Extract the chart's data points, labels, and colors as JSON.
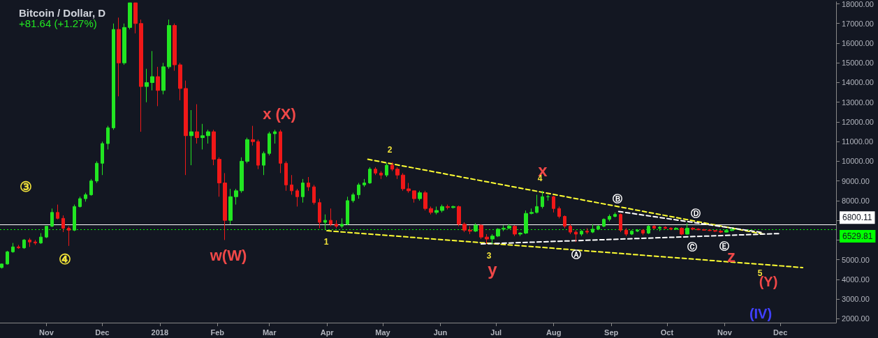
{
  "chart_data": {
    "type": "candlestick",
    "title": "Bitcoin / Dollar, D",
    "subtitle": "+81.64 (+1.27%)",
    "x": [
      "2017-10-08",
      "2017-10-11",
      "2017-10-14",
      "2017-10-17",
      "2017-10-20",
      "2017-10-23",
      "2017-10-26",
      "2017-10-29",
      "2017-11-01",
      "2017-11-04",
      "2017-11-07",
      "2017-11-10",
      "2017-11-13",
      "2017-11-16",
      "2017-11-19",
      "2017-11-22",
      "2017-11-25",
      "2017-11-28",
      "2017-12-01",
      "2017-12-04",
      "2017-12-07",
      "2017-12-10",
      "2017-12-13",
      "2017-12-16",
      "2017-12-19",
      "2017-12-22",
      "2017-12-25",
      "2017-12-28",
      "2017-12-31",
      "2018-01-03",
      "2018-01-06",
      "2018-01-09",
      "2018-01-12",
      "2018-01-15",
      "2018-01-18",
      "2018-01-21",
      "2018-01-24",
      "2018-01-27",
      "2018-01-30",
      "2018-02-02",
      "2018-02-05",
      "2018-02-08",
      "2018-02-11",
      "2018-02-14",
      "2018-02-17",
      "2018-02-20",
      "2018-02-23",
      "2018-02-26",
      "2018-03-01",
      "2018-03-04",
      "2018-03-07",
      "2018-03-10",
      "2018-03-13",
      "2018-03-16",
      "2018-03-19",
      "2018-03-22",
      "2018-03-25",
      "2018-03-28",
      "2018-03-31",
      "2018-04-03",
      "2018-04-06",
      "2018-04-09",
      "2018-04-12",
      "2018-04-15",
      "2018-04-18",
      "2018-04-21",
      "2018-04-24",
      "2018-04-27",
      "2018-04-30",
      "2018-05-03",
      "2018-05-06",
      "2018-05-09",
      "2018-05-12",
      "2018-05-15",
      "2018-05-18",
      "2018-05-21",
      "2018-05-24",
      "2018-05-27",
      "2018-05-30",
      "2018-06-02",
      "2018-06-05",
      "2018-06-08",
      "2018-06-11",
      "2018-06-14",
      "2018-06-17",
      "2018-06-20",
      "2018-06-23",
      "2018-06-26",
      "2018-06-29",
      "2018-07-02",
      "2018-07-05",
      "2018-07-08",
      "2018-07-11",
      "2018-07-14",
      "2018-07-17",
      "2018-07-20",
      "2018-07-23",
      "2018-07-26",
      "2018-07-29",
      "2018-08-01",
      "2018-08-04",
      "2018-08-07",
      "2018-08-10",
      "2018-08-13",
      "2018-08-16",
      "2018-08-19",
      "2018-08-22",
      "2018-08-25",
      "2018-08-28",
      "2018-08-31",
      "2018-09-03",
      "2018-09-06",
      "2018-09-09",
      "2018-09-12",
      "2018-09-15",
      "2018-09-18",
      "2018-09-21",
      "2018-09-24",
      "2018-09-27",
      "2018-09-30",
      "2018-10-03",
      "2018-10-06",
      "2018-10-09",
      "2018-10-12",
      "2018-10-15",
      "2018-10-18",
      "2018-10-21",
      "2018-10-24",
      "2018-10-27",
      "2018-10-30",
      "2018-11-02",
      "2018-11-05"
    ],
    "ohlc": [
      [
        4600,
        4800,
        4550,
        4780
      ],
      [
        4780,
        5450,
        4750,
        5400
      ],
      [
        5400,
        5850,
        5350,
        5650
      ],
      [
        5650,
        5750,
        5550,
        5600
      ],
      [
        5600,
        6050,
        5550,
        6000
      ],
      [
        6000,
        6100,
        5650,
        5900
      ],
      [
        5900,
        6000,
        5750,
        5850
      ],
      [
        5850,
        6350,
        5800,
        6150
      ],
      [
        6150,
        6700,
        6100,
        6700
      ],
      [
        6700,
        7600,
        6650,
        7400
      ],
      [
        7400,
        7800,
        7050,
        7100
      ],
      [
        7100,
        7250,
        6400,
        6600
      ],
      [
        6600,
        6700,
        5700,
        6500
      ],
      [
        6500,
        7800,
        6450,
        7700
      ],
      [
        7700,
        8200,
        7650,
        8100
      ],
      [
        8100,
        8400,
        7950,
        8300
      ],
      [
        8300,
        9100,
        8250,
        9000
      ],
      [
        9000,
        10000,
        8900,
        9900
      ],
      [
        9900,
        11000,
        9300,
        10900
      ],
      [
        10900,
        11800,
        10600,
        11700
      ],
      [
        11700,
        17000,
        11600,
        16700
      ],
      [
        16700,
        17300,
        13300,
        15000
      ],
      [
        15000,
        17000,
        14900,
        16800
      ],
      [
        16800,
        18050,
        16700,
        18050
      ],
      [
        18050,
        18050,
        16500,
        17000
      ],
      [
        17000,
        17200,
        11500,
        13800
      ],
      [
        13800,
        14700,
        13000,
        14000
      ],
      [
        14000,
        15600,
        13600,
        14300
      ],
      [
        14300,
        14800,
        12800,
        13600
      ],
      [
        13600,
        15000,
        13400,
        14800
      ],
      [
        14800,
        17200,
        14700,
        16900
      ],
      [
        16900,
        17000,
        14600,
        14900
      ],
      [
        14900,
        15000,
        13100,
        13700
      ],
      [
        13700,
        14100,
        9300,
        11300
      ],
      [
        11300,
        12600,
        9800,
        11500
      ],
      [
        11500,
        12900,
        10900,
        11200
      ],
      [
        11200,
        11900,
        10600,
        11300
      ],
      [
        11300,
        11600,
        10900,
        11500
      ],
      [
        11500,
        11600,
        9800,
        10100
      ],
      [
        10100,
        10200,
        8200,
        8900
      ],
      [
        8900,
        9400,
        6000,
        7000
      ],
      [
        7000,
        8600,
        6800,
        8200
      ],
      [
        8200,
        8600,
        7800,
        8500
      ],
      [
        8500,
        10200,
        8400,
        10000
      ],
      [
        10000,
        11200,
        9900,
        11100
      ],
      [
        11100,
        11800,
        10800,
        11000
      ],
      [
        11000,
        11100,
        9600,
        9800
      ],
      [
        9800,
        10500,
        9300,
        10400
      ],
      [
        10400,
        11500,
        10300,
        11400
      ],
      [
        11400,
        11600,
        10900,
        11500
      ],
      [
        11500,
        11600,
        9400,
        9900
      ],
      [
        9900,
        10000,
        8500,
        8800
      ],
      [
        8800,
        9300,
        8300,
        8500
      ],
      [
        8500,
        8600,
        7700,
        8200
      ],
      [
        8200,
        9100,
        7900,
        8900
      ],
      [
        8900,
        9200,
        8500,
        8700
      ],
      [
        8700,
        8800,
        7800,
        7900
      ],
      [
        7900,
        8100,
        6600,
        6900
      ],
      [
        6900,
        7300,
        6500,
        7000
      ],
      [
        7000,
        7600,
        6700,
        6800
      ],
      [
        6800,
        7000,
        6600,
        6700
      ],
      [
        6700,
        7100,
        6600,
        6800
      ],
      [
        6800,
        8200,
        6750,
        8000
      ],
      [
        8000,
        8400,
        7900,
        8300
      ],
      [
        8300,
        8900,
        8100,
        8800
      ],
      [
        8800,
        9100,
        8700,
        8900
      ],
      [
        8900,
        9700,
        8850,
        9600
      ],
      [
        9600,
        9700,
        9300,
        9400
      ],
      [
        9400,
        9500,
        9100,
        9300
      ],
      [
        9300,
        9900,
        9200,
        9800
      ],
      [
        9800,
        9950,
        9500,
        9600
      ],
      [
        9600,
        9700,
        9100,
        9300
      ],
      [
        9300,
        9400,
        8500,
        8600
      ],
      [
        8600,
        8900,
        8400,
        8500
      ],
      [
        8500,
        8500,
        7900,
        8100
      ],
      [
        8100,
        8500,
        8000,
        8400
      ],
      [
        8400,
        8500,
        7500,
        7600
      ],
      [
        7600,
        7700,
        7300,
        7400
      ],
      [
        7400,
        7700,
        7300,
        7500
      ],
      [
        7500,
        7800,
        7400,
        7700
      ],
      [
        7700,
        7800,
        7550,
        7650
      ],
      [
        7650,
        7750,
        7600,
        7700
      ],
      [
        7700,
        7750,
        6700,
        6800
      ],
      [
        6800,
        6900,
        6400,
        6500
      ],
      [
        6500,
        6700,
        6300,
        6450
      ],
      [
        6450,
        6850,
        6400,
        6750
      ],
      [
        6750,
        6800,
        6050,
        6150
      ],
      [
        6150,
        6300,
        5800,
        6050
      ],
      [
        6050,
        6300,
        5800,
        6200
      ],
      [
        6200,
        6600,
        6150,
        6550
      ],
      [
        6550,
        6750,
        6450,
        6600
      ],
      [
        6600,
        6800,
        6550,
        6700
      ],
      [
        6700,
        6750,
        6200,
        6300
      ],
      [
        6300,
        6400,
        6200,
        6350
      ],
      [
        6350,
        7500,
        6300,
        7350
      ],
      [
        7350,
        7600,
        7300,
        7400
      ],
      [
        7400,
        8300,
        7350,
        7700
      ],
      [
        7700,
        8500,
        7600,
        8200
      ],
      [
        8200,
        8300,
        8000,
        8200
      ],
      [
        8200,
        8250,
        7400,
        7600
      ],
      [
        7600,
        7700,
        7100,
        7200
      ],
      [
        7200,
        7250,
        6600,
        6700
      ],
      [
        6700,
        6800,
        6300,
        6400
      ],
      [
        6400,
        6500,
        5900,
        6300
      ],
      [
        6300,
        6500,
        6200,
        6450
      ],
      [
        6450,
        6600,
        6300,
        6400
      ],
      [
        6400,
        6800,
        6350,
        6550
      ],
      [
        6550,
        6750,
        6500,
        6700
      ],
      [
        6700,
        7100,
        6650,
        7050
      ],
      [
        7050,
        7300,
        6950,
        7200
      ],
      [
        7200,
        7400,
        7150,
        7300
      ],
      [
        7300,
        7350,
        6400,
        6500
      ],
      [
        6500,
        6600,
        6200,
        6300
      ],
      [
        6300,
        6500,
        6250,
        6450
      ],
      [
        6450,
        6550,
        6400,
        6500
      ],
      [
        6500,
        6550,
        6250,
        6350
      ],
      [
        6350,
        6750,
        6300,
        6700
      ],
      [
        6700,
        6750,
        6550,
        6600
      ],
      [
        6600,
        6700,
        6450,
        6650
      ],
      [
        6650,
        6700,
        6550,
        6600
      ],
      [
        6600,
        6650,
        6500,
        6550
      ],
      [
        6550,
        6650,
        6530,
        6600
      ],
      [
        6600,
        6650,
        6250,
        6300
      ],
      [
        6300,
        6850,
        6280,
        6600
      ],
      [
        6600,
        6650,
        6500,
        6550
      ],
      [
        6550,
        6600,
        6500,
        6520
      ],
      [
        6520,
        6560,
        6480,
        6500
      ],
      [
        6500,
        6550,
        6450,
        6480
      ],
      [
        6480,
        6500,
        6400,
        6450
      ],
      [
        6450,
        6500,
        6350,
        6400
      ],
      [
        6400,
        6550,
        6380,
        6480
      ],
      [
        6480,
        6620,
        6450,
        6530
      ]
    ],
    "series": [
      {
        "type": "line",
        "color": "#ffff33",
        "line_style": "dashed",
        "x": [
          "2018-04-23",
          "2018-11-22"
        ],
        "values": [
          10100,
          6300
        ]
      },
      {
        "type": "line",
        "color": "#ffff33",
        "line_style": "dashed",
        "x": [
          "2018-04-01",
          "2018-12-13"
        ],
        "values": [
          6470,
          4600
        ]
      },
      {
        "type": "line",
        "color": "#ffffff",
        "line_style": "dashed",
        "x": [
          "2018-09-05",
          "2018-11-22"
        ],
        "values": [
          7450,
          6370
        ]
      },
      {
        "type": "line",
        "color": "#ffffff",
        "line_style": "dashed",
        "x": [
          "2018-06-23",
          "2018-12-01"
        ],
        "values": [
          5800,
          6330
        ]
      }
    ],
    "xlim": [
      "2017-10-07",
      "2018-12-31"
    ],
    "xticks": [
      {
        "value": "2017-11-01",
        "label": "Nov"
      },
      {
        "value": "2017-12-01",
        "label": "Dec"
      },
      {
        "value": "2018-01-01",
        "label": "2018"
      },
      {
        "value": "2018-02-01",
        "label": "Feb"
      },
      {
        "value": "2018-03-01",
        "label": "Mar"
      },
      {
        "value": "2018-04-01",
        "label": "Apr"
      },
      {
        "value": "2018-05-01",
        "label": "May"
      },
      {
        "value": "2018-06-01",
        "label": "Jun"
      },
      {
        "value": "2018-07-01",
        "label": "Jul"
      },
      {
        "value": "2018-08-01",
        "label": "Aug"
      },
      {
        "value": "2018-09-01",
        "label": "Sep"
      },
      {
        "value": "2018-10-01",
        "label": "Oct"
      },
      {
        "value": "2018-11-01",
        "label": "Nov"
      },
      {
        "value": "2018-12-01",
        "label": "Dec"
      }
    ],
    "ylim": [
      1800,
      18100
    ],
    "yticks": [
      {
        "value": 2000,
        "label": "2000.00"
      },
      {
        "value": 3000,
        "label": "3000.00"
      },
      {
        "value": 4000,
        "label": "4000.00"
      },
      {
        "value": 5000,
        "label": "5000.00"
      },
      {
        "value": 6000,
        "label": null
      },
      {
        "value": 7000,
        "label": null
      },
      {
        "value": 8000,
        "label": "8000.00"
      },
      {
        "value": 9000,
        "label": "9000.00"
      },
      {
        "value": 10000,
        "label": "10000.00"
      },
      {
        "value": 11000,
        "label": "11000.00"
      },
      {
        "value": 12000,
        "label": "12000.00"
      },
      {
        "value": 13000,
        "label": "13000.00"
      },
      {
        "value": 14000,
        "label": "14000.00"
      },
      {
        "value": 15000,
        "label": "15000.00"
      },
      {
        "value": 16000,
        "label": "16000.00"
      },
      {
        "value": 17000,
        "label": "17000.00"
      },
      {
        "value": 18000,
        "label": "18000.00"
      }
    ],
    "ref_lines": [
      {
        "axis": "y",
        "value": 6800.11,
        "label": "6800.11",
        "color": "#ffffff",
        "line_style": "solid"
      },
      {
        "axis": "y",
        "value": 6529.81,
        "label": "6529.81",
        "color": "#00ff00",
        "line_style": "dotted"
      }
    ],
    "annotations": [
      "③",
      "④",
      "w(W)",
      "x (X)",
      "1",
      "2",
      "3",
      "y",
      "x",
      "4",
      "Ⓐ",
      "Ⓑ",
      "Ⓒ",
      "Ⓓ",
      "Ⓔ",
      "z",
      "5",
      "(Y)",
      "(IV)"
    ],
    "grid": false
  }
}
